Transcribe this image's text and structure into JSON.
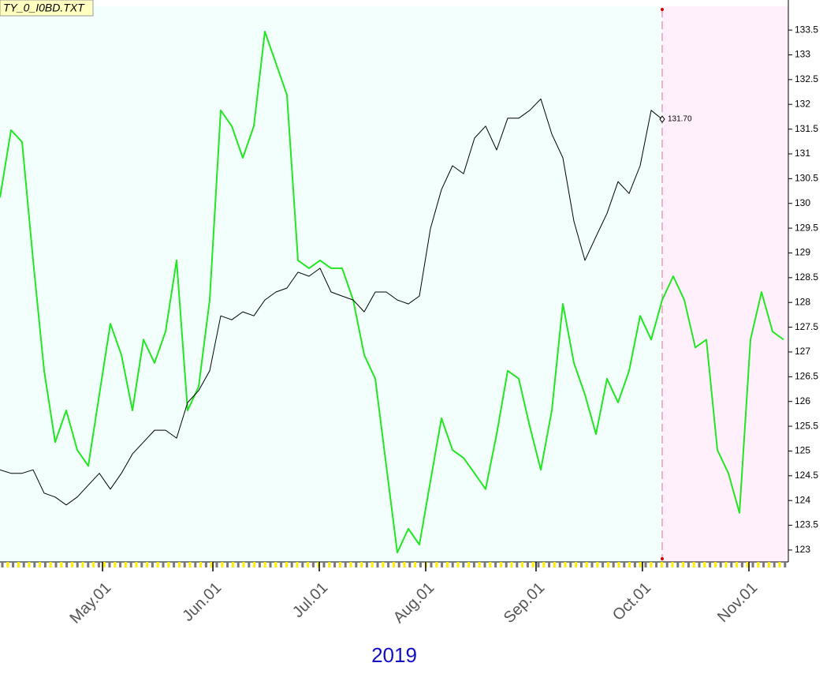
{
  "chart_data": {
    "type": "line",
    "title": "TY_0_I0BD.TXT",
    "x_label": "2019",
    "series": [
      {
        "name": "TY_0_I0BD.TXT",
        "color": "#000000",
        "width": 1,
        "values": [
          124.62,
          124.55,
          124.55,
          124.62,
          124.15,
          124.07,
          123.91,
          124.07,
          124.31,
          124.55,
          124.23,
          124.55,
          124.94,
          125.18,
          125.42,
          125.42,
          125.26,
          125.98,
          126.22,
          126.62,
          127.73,
          127.65,
          127.81,
          127.73,
          128.05,
          128.21,
          128.29,
          128.61,
          128.53,
          128.69,
          128.21,
          128.13,
          128.05,
          127.81,
          128.21,
          128.21,
          128.05,
          127.97,
          128.13,
          129.49,
          130.28,
          130.76,
          130.6,
          131.32,
          131.56,
          131.08,
          131.72,
          131.72,
          131.88,
          132.11,
          131.4,
          130.92,
          129.64,
          128.85,
          129.33,
          129.8,
          130.44,
          130.2,
          130.76,
          131.88,
          131.7
        ],
        "value_labels": [
          null,
          null,
          null,
          null,
          null,
          null,
          null,
          null,
          null,
          null,
          null,
          null,
          null,
          null,
          null,
          null,
          null,
          null,
          null,
          null,
          null,
          null,
          null,
          null,
          null,
          null,
          null,
          null,
          null,
          null,
          null,
          null,
          null,
          null,
          null,
          null,
          null,
          null,
          null,
          null,
          null,
          null,
          null,
          null,
          null,
          null,
          null,
          null,
          null,
          null,
          null,
          null,
          null,
          null,
          null,
          null,
          null,
          null,
          null,
          null,
          "131.70"
        ]
      },
      {
        "color": "#22e622",
        "width": 2,
        "values": [
          130.12,
          131.48,
          131.24,
          128.85,
          126.62,
          125.18,
          125.82,
          125.02,
          124.7,
          126.14,
          127.57,
          126.94,
          125.82,
          127.25,
          126.78,
          127.41,
          128.85,
          125.82,
          126.3,
          128.05,
          131.88,
          131.56,
          130.92,
          131.56,
          133.47,
          132.83,
          132.19,
          128.85,
          128.69,
          128.85,
          128.69,
          128.69,
          128.05,
          126.94,
          126.46,
          124.7,
          122.95,
          123.43,
          123.11,
          124.39,
          125.66,
          125.02,
          124.86,
          124.55,
          124.23,
          125.34,
          126.62,
          126.46,
          125.5,
          124.62,
          125.82,
          127.97,
          126.78,
          126.14,
          125.34,
          126.46,
          125.98,
          126.62,
          127.73,
          127.25,
          128.05,
          128.53,
          128.05,
          127.09,
          127.25,
          125.02,
          124.55,
          123.75,
          127.25,
          128.21,
          127.41,
          127.25
        ]
      }
    ],
    "xlim": [
      0,
      71.43
    ],
    "xticks": [
      {
        "value": 9.29,
        "label": "May.01"
      },
      {
        "value": 19.29,
        "label": "Jun.01"
      },
      {
        "value": 28.93,
        "label": "Jul.01"
      },
      {
        "value": 38.57,
        "label": "Aug.01"
      },
      {
        "value": 48.57,
        "label": "Sep.01"
      },
      {
        "value": 58.21,
        "label": "Oct.01"
      },
      {
        "value": 67.86,
        "label": "Nov.01"
      }
    ],
    "ylim": [
      122.76,
      133.98
    ],
    "yticks": [
      123,
      123.5,
      124,
      124.5,
      125,
      125.5,
      126,
      126.5,
      127,
      127.5,
      128,
      128.5,
      129,
      129.5,
      130,
      130.5,
      131,
      131.5,
      132,
      132.5,
      133,
      133.5
    ]
  }
}
